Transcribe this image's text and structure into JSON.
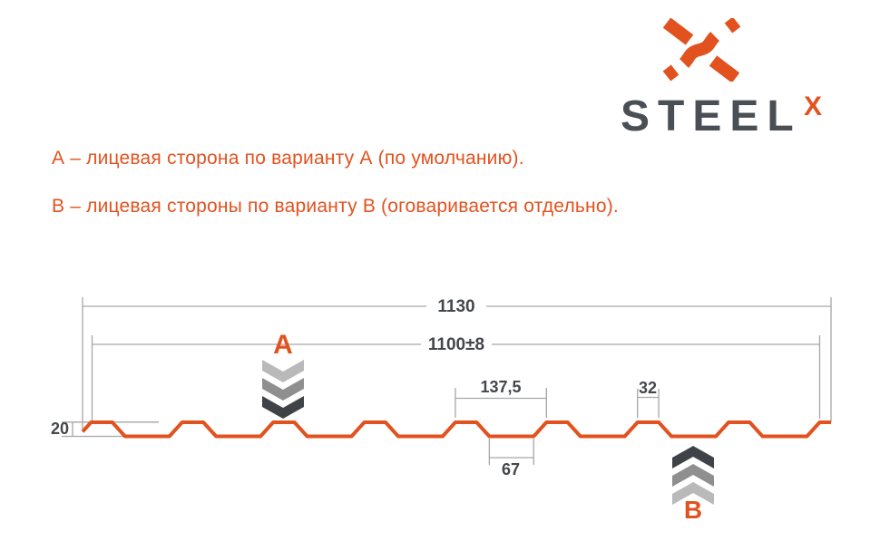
{
  "colors": {
    "orange": "#E2521F",
    "steel_gray": "#4A4F55",
    "dark_text": "#43474C",
    "line_gray": "#A6A6A6",
    "chevron_light": "#B9B9B9",
    "chevron_mid": "#8F8F8F",
    "chevron_dark": "#3F4347"
  },
  "logo": {
    "brand": "STEEL",
    "sup": "X",
    "mark_icon": "steelx-x-mark"
  },
  "notes": {
    "line_a": "А – лицевая сторона по варианту А (по умолчанию).",
    "line_b": "В – лицевая стороны по варианту В (оговаривается отдельно)."
  },
  "markers": {
    "a": "A",
    "b": "B"
  },
  "dimensions": {
    "overall": "1130",
    "working": "1100±8",
    "pitch": "137,5",
    "crest": "32",
    "valley": "67",
    "height": "20"
  },
  "profile_mm": {
    "overall": 1130,
    "working": 1100,
    "tolerance": 8,
    "pitch": 137.5,
    "crest": 32,
    "valley": 67,
    "height": 20,
    "ribs": 9
  }
}
